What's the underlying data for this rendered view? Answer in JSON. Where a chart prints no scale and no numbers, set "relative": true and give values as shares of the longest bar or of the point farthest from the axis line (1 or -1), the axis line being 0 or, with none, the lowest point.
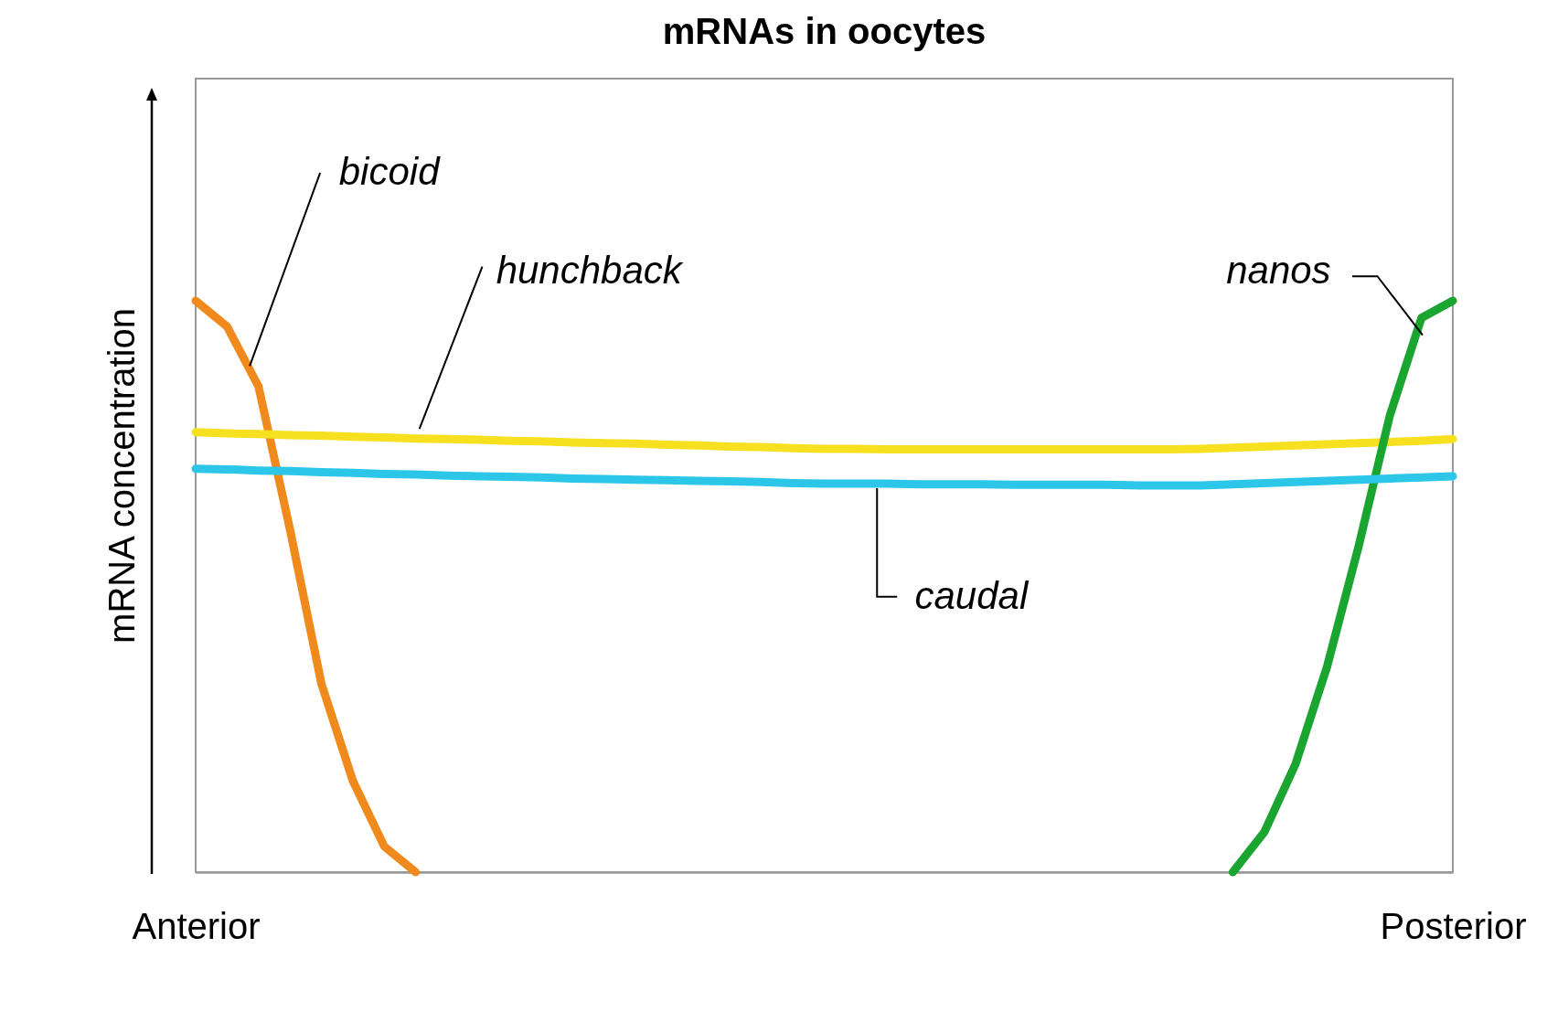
{
  "chart_data": {
    "type": "line",
    "title": "mRNAs in oocytes",
    "ylabel": "mRNA concentration",
    "relative": true,
    "grid": false,
    "categories": [
      "Anterior",
      null,
      null,
      null,
      null,
      null,
      null,
      null,
      null,
      null,
      null,
      null,
      null,
      null,
      null,
      null,
      null,
      null,
      null,
      null,
      null,
      null,
      null,
      null,
      null,
      null,
      null,
      null,
      null,
      null,
      null,
      null,
      null,
      null,
      null,
      null,
      null,
      null,
      null,
      null,
      "Posterior"
    ],
    "series": [
      {
        "name": "bicoid",
        "color": "#f08a1c",
        "values": [
          1,
          0.955,
          0.85,
          0.6,
          0.33,
          0.16,
          0.045,
          0,
          null,
          null,
          null,
          null,
          null,
          null,
          null,
          null,
          null,
          null,
          null,
          null,
          null,
          null,
          null,
          null,
          null,
          null,
          null,
          null,
          null,
          null,
          null,
          null,
          null,
          null,
          null,
          null,
          null,
          null,
          null,
          null,
          null
        ]
      },
      {
        "name": "hunchback",
        "color": "#f7e020",
        "values": [
          0.77,
          0.768,
          0.767,
          0.765,
          0.764,
          0.762,
          0.761,
          0.759,
          0.758,
          0.757,
          0.755,
          0.754,
          0.752,
          0.751,
          0.75,
          0.748,
          0.747,
          0.745,
          0.744,
          0.742,
          0.741,
          0.741,
          0.74,
          0.74,
          0.74,
          0.74,
          0.74,
          0.74,
          0.74,
          0.74,
          0.74,
          0.74,
          0.741,
          0.743,
          0.745,
          0.747,
          0.749,
          0.751,
          0.753,
          0.755,
          0.758
        ]
      },
      {
        "name": "nanos",
        "color": "#1aa531",
        "values": [
          null,
          null,
          null,
          null,
          null,
          null,
          null,
          null,
          null,
          null,
          null,
          null,
          null,
          null,
          null,
          null,
          null,
          null,
          null,
          null,
          null,
          null,
          null,
          null,
          null,
          null,
          null,
          null,
          null,
          null,
          null,
          null,
          null,
          0,
          0.07,
          0.19,
          0.36,
          0.57,
          0.8,
          0.97,
          1
        ]
      },
      {
        "name": "caudal",
        "color": "#2cc6e8",
        "values": [
          0.706,
          0.705,
          0.703,
          0.702,
          0.7,
          0.699,
          0.697,
          0.696,
          0.694,
          0.693,
          0.692,
          0.691,
          0.689,
          0.688,
          0.687,
          0.686,
          0.685,
          0.684,
          0.683,
          0.681,
          0.68,
          0.68,
          0.68,
          0.679,
          0.679,
          0.679,
          0.678,
          0.678,
          0.678,
          0.678,
          0.677,
          0.677,
          0.677,
          0.679,
          0.681,
          0.683,
          0.685,
          0.687,
          0.689,
          0.691,
          0.693
        ]
      }
    ]
  }
}
